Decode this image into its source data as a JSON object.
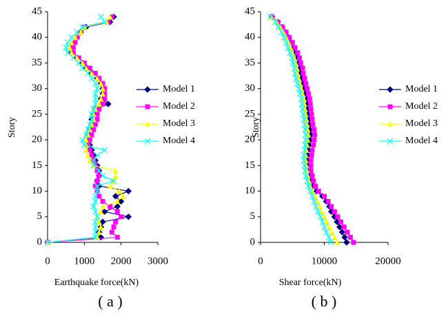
{
  "chart_data": [
    {
      "type": "line",
      "x_label": "Earthquake force(kN)",
      "y_label": "Story",
      "caption": "( a )",
      "y": [
        0,
        1,
        2,
        3,
        4,
        5,
        6,
        7,
        8,
        9,
        10,
        11,
        12,
        13,
        14,
        15,
        16,
        17,
        18,
        19,
        20,
        21,
        22,
        23,
        24,
        25,
        26,
        27,
        28,
        29,
        30,
        31,
        32,
        33,
        34,
        35,
        36,
        37,
        38,
        39,
        40,
        41,
        42,
        43,
        44
      ],
      "xlim": [
        0,
        3000
      ],
      "xticks": [
        0,
        1000,
        2000,
        3000
      ],
      "ylim": [
        0,
        45
      ],
      "yticks": [
        0,
        5,
        10,
        15,
        20,
        25,
        30,
        35,
        40,
        45
      ],
      "legend": "right",
      "series": [
        {
          "name": "Model 1",
          "color": "#000080",
          "marker": "diamond",
          "values": [
            0,
            1450,
            1400,
            1450,
            1500,
            2200,
            1550,
            1900,
            2000,
            1850,
            2200,
            1400,
            1350,
            1400,
            1400,
            1350,
            1300,
            1250,
            1200,
            1150,
            1100,
            1100,
            1150,
            1200,
            1200,
            1250,
            1300,
            1650,
            1450,
            1500,
            1500,
            1450,
            1350,
            1200,
            1050,
            950,
            800,
            650,
            650,
            700,
            800,
            900,
            1050,
            1700,
            1800
          ]
        },
        {
          "name": "Model 2",
          "color": "#ff00ff",
          "marker": "square",
          "values": [
            0,
            1900,
            1750,
            1800,
            1850,
            2000,
            1900,
            1700,
            1500,
            1400,
            1350,
            1300,
            1350,
            1400,
            1350,
            1300,
            1250,
            1200,
            1150,
            1100,
            1150,
            1200,
            1250,
            1300,
            1350,
            1350,
            1400,
            1500,
            1550,
            1550,
            1550,
            1500,
            1400,
            1300,
            1150,
            1000,
            850,
            700,
            700,
            750,
            800,
            900,
            1000,
            1650,
            1750
          ]
        },
        {
          "name": "Model 3",
          "color": "#ffff00",
          "marker": "triangle",
          "values": [
            0,
            1350,
            1400,
            1450,
            1400,
            1350,
            1450,
            1500,
            1900,
            2050,
            1950,
            1700,
            1800,
            1850,
            1850,
            1250,
            1150,
            1100,
            1050,
            1050,
            1050,
            1100,
            1150,
            1200,
            1250,
            1250,
            1300,
            1400,
            1450,
            1500,
            1500,
            1450,
            1350,
            1200,
            1050,
            950,
            800,
            650,
            600,
            650,
            750,
            900,
            1000,
            1600,
            1700
          ]
        },
        {
          "name": "Model 4",
          "color": "#00ffff",
          "marker": "cross",
          "values": [
            0,
            1300,
            1300,
            1300,
            1300,
            1350,
            1300,
            1250,
            1300,
            1300,
            1350,
            1350,
            1800,
            1500,
            1400,
            1250,
            1250,
            1350,
            1550,
            1000,
            950,
            1050,
            1100,
            1150,
            1200,
            1200,
            1250,
            1300,
            1300,
            1300,
            1350,
            1300,
            1200,
            1100,
            950,
            850,
            700,
            550,
            500,
            550,
            650,
            800,
            950,
            1550,
            1450
          ]
        }
      ]
    },
    {
      "type": "line",
      "x_label": "Shear force(kN)",
      "y_label": "Story",
      "caption": "( b )",
      "y": [
        0,
        1,
        2,
        3,
        4,
        5,
        6,
        7,
        8,
        9,
        10,
        11,
        12,
        13,
        14,
        15,
        16,
        17,
        18,
        19,
        20,
        21,
        22,
        23,
        24,
        25,
        26,
        27,
        28,
        29,
        30,
        31,
        32,
        33,
        34,
        35,
        36,
        37,
        38,
        39,
        40,
        41,
        42,
        43,
        44
      ],
      "xlim": [
        0,
        20000
      ],
      "xticks": [
        0,
        10000,
        20000
      ],
      "ylim": [
        0,
        45
      ],
      "yticks": [
        0,
        5,
        10,
        15,
        20,
        25,
        30,
        35,
        40,
        45
      ],
      "legend": "right",
      "series": [
        {
          "name": "Model 1",
          "color": "#000080",
          "marker": "diamond",
          "values": [
            13500,
            13200,
            12800,
            12400,
            12000,
            11600,
            11100,
            10800,
            10300,
            9700,
            8800,
            8300,
            8000,
            7800,
            7600,
            7500,
            7400,
            7400,
            7500,
            7600,
            7800,
            7900,
            7800,
            7700,
            7600,
            7500,
            7400,
            7400,
            7300,
            7100,
            6900,
            6700,
            6500,
            6300,
            6200,
            6000,
            5800,
            5500,
            5200,
            4800,
            4400,
            3900,
            3400,
            2700,
            1800
          ]
        },
        {
          "name": "Model 2",
          "color": "#ff00ff",
          "marker": "square",
          "values": [
            14600,
            14100,
            13600,
            13100,
            12600,
            12100,
            11600,
            11100,
            10600,
            10000,
            9100,
            8600,
            8300,
            8100,
            7900,
            7900,
            7900,
            8000,
            8100,
            8300,
            8400,
            8500,
            8400,
            8200,
            8100,
            8000,
            7900,
            7800,
            7700,
            7500,
            7300,
            7100,
            6900,
            6700,
            6600,
            6300,
            6100,
            5800,
            5400,
            5000,
            4500,
            4000,
            3400,
            2700,
            1800
          ]
        },
        {
          "name": "Model 3",
          "color": "#ffff00",
          "marker": "triangle",
          "values": [
            12000,
            11600,
            11200,
            10800,
            10400,
            10000,
            9600,
            9300,
            8900,
            8500,
            8100,
            7800,
            7600,
            7400,
            7300,
            7200,
            7100,
            7100,
            7200,
            7300,
            7400,
            7500,
            7400,
            7300,
            7200,
            7100,
            7000,
            6900,
            6800,
            6600,
            6400,
            6200,
            6000,
            5800,
            5700,
            5500,
            5300,
            5000,
            4700,
            4400,
            4000,
            3600,
            3100,
            2500,
            1700
          ]
        },
        {
          "name": "Model 4",
          "color": "#00ffff",
          "marker": "cross",
          "values": [
            11000,
            10700,
            10300,
            10000,
            9700,
            9400,
            9000,
            8700,
            8400,
            8100,
            7800,
            7500,
            7300,
            7100,
            7000,
            6900,
            6800,
            6800,
            6900,
            7000,
            7100,
            7100,
            7000,
            6900,
            6800,
            6700,
            6600,
            6500,
            6400,
            6200,
            6000,
            5800,
            5600,
            5400,
            5300,
            5100,
            4900,
            4600,
            4300,
            4000,
            3700,
            3300,
            2800,
            2300,
            1600
          ]
        }
      ]
    }
  ]
}
